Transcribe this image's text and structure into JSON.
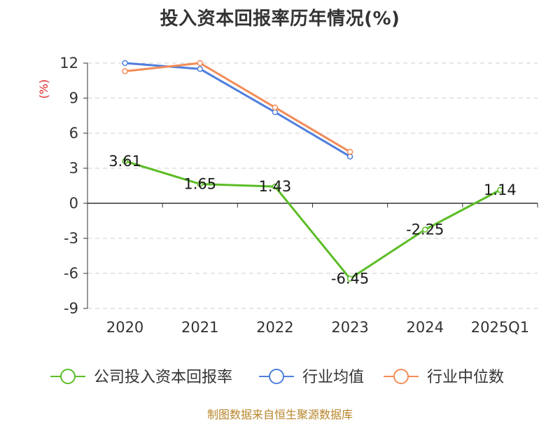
{
  "colors": {
    "company": "#5cbd26",
    "industry_avg": "#4f7fdc",
    "industry_median": "#f28c58",
    "grid": "#cccccc",
    "axis": "#333333",
    "unit": "#e02020",
    "source": "#b8862b"
  },
  "chart_data": {
    "type": "line",
    "title": "投入资本回报率历年情况(%)",
    "ylabel": "(%)",
    "categories": [
      "2020",
      "2021",
      "2022",
      "2023",
      "2024",
      "2025Q1"
    ],
    "ylim": [
      -9,
      12
    ],
    "yticks": [
      12,
      9,
      6,
      3,
      0,
      -3,
      -6,
      -9
    ],
    "grid": true,
    "legend_position": "bottom",
    "series": [
      {
        "name": "公司投入资本回报率",
        "values": [
          3.61,
          1.65,
          1.43,
          -6.45,
          -2.25,
          1.14
        ],
        "data_labels": [
          "3.61",
          "1.65",
          "1.43",
          "-6.45",
          "-2.25",
          "1.14"
        ]
      },
      {
        "name": "行业均值",
        "values": [
          12.0,
          11.5,
          7.8,
          4.0,
          null,
          null
        ]
      },
      {
        "name": "行业中位数",
        "values": [
          11.3,
          12.0,
          8.2,
          4.4,
          null,
          null
        ]
      }
    ]
  },
  "footer": {
    "source": "制图数据来自恒生聚源数据库"
  }
}
